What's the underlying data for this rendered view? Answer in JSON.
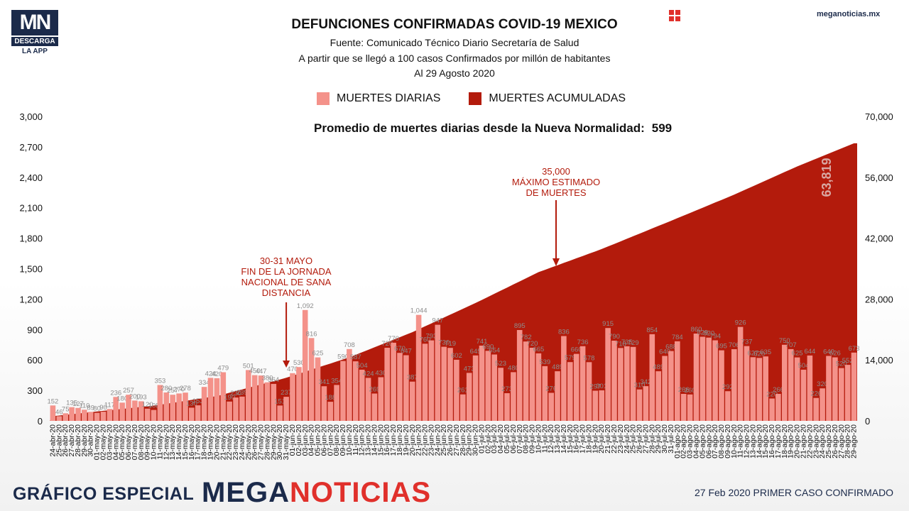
{
  "brand": {
    "logo_mn": "MN",
    "logo_descarga": "DESCARGA",
    "logo_app": "LA APP",
    "site": "meganoticias.mx"
  },
  "colors": {
    "daily": "#f4928a",
    "cumulative": "#b31b0c",
    "navy": "#1b2a4a",
    "accent": "#e0302b"
  },
  "header": {
    "title": "DEFUNCIONES CONFIRMADAS COVID-19 MEXICO",
    "source": "Fuente: Comunicado Técnico Diario Secretaría de Salud",
    "subtitle": "A partir que se llegó a 100 casos Confirmados por millón de habitantes",
    "date": "Al 29 Agosto 2020"
  },
  "legend": {
    "daily": "MUERTES DIARIAS",
    "cumulative": "MUERTES ACUMULADAS"
  },
  "average_label": "Promedio de muertes diarias desde la Nueva Normalidad:",
  "average_value": "599",
  "annotations": {
    "lockdown_end": [
      "30-31 MAYO",
      "FIN DE LA JORNADA",
      "NACIONAL DE SANA",
      "DISTANCIA"
    ],
    "estimate": [
      "35,000",
      "MÁXIMO ESTIMADO",
      "DE MUERTES"
    ],
    "final_total": "63,819"
  },
  "footer": {
    "left": "GRÁFICO ESPECIAL",
    "brand_a": "MEGA",
    "brand_b": "NOTICIAS",
    "right": "27 Feb 2020 PRIMER CASO CONFIRMADO"
  },
  "chart_data": {
    "type": "bar",
    "left_axis": {
      "ylim": [
        0,
        3000
      ],
      "ticks": [
        "0",
        "300",
        "600",
        "900",
        "1,200",
        "1,500",
        "1,800",
        "2,100",
        "2,400",
        "2,700",
        "3,000"
      ]
    },
    "right_axis": {
      "ylim": [
        0,
        70000
      ],
      "ticks": [
        "0",
        "14,000",
        "28,000",
        "42,000",
        "56,000",
        "70,000"
      ]
    },
    "categories": [
      "24-abr-20",
      "25-abr-20",
      "26-abr-20",
      "27-abr-20",
      "28-abr-20",
      "29-abr-20",
      "30-abr-20",
      "01-may-20",
      "02-may-20",
      "03-may-20",
      "04-may-20",
      "05-may-20",
      "06-may-20",
      "07-may-20",
      "08-may-20",
      "09-may-20",
      "10-may-20",
      "11-may-20",
      "12-may-20",
      "13-may-20",
      "14-may-20",
      "15-may-20",
      "16-may-20",
      "17-may-20",
      "18-may-20",
      "19-may-20",
      "20-may-20",
      "21-may-20",
      "22-may-20",
      "23-may-20",
      "24-may-20",
      "25-may-20",
      "26-may-20",
      "27-may-20",
      "28-may-20",
      "29-may-20",
      "30-may-20",
      "31-may-20",
      "01-jun-20",
      "02-jun-20",
      "03-jun-20",
      "04-jun-20",
      "05-jun-20",
      "06-jun-20",
      "07-jun-20",
      "08-jun-20",
      "09-jun-20",
      "10-jun-20",
      "11-jun-20",
      "12-jun-20",
      "13-jun-20",
      "14-jun-20",
      "15-jun-20",
      "16-jun-20",
      "17-jun-20",
      "18-jun-20",
      "19-jun-20",
      "20-jun-20",
      "21-jun-20",
      "22-jun-20",
      "23-jun-20",
      "24-jun-20",
      "25-jun-20",
      "26-jun-20",
      "27-jun-20",
      "28-jun-20",
      "29-jun-20",
      "30-jun-20",
      "01-jul-20",
      "02-jul-20",
      "03-jul-20",
      "04-jul-20",
      "05-jul-20",
      "06-jul-20",
      "07-jul-20",
      "08-jul-20",
      "09-jul-20",
      "10-jul-20",
      "11-jul-20",
      "12-jul-20",
      "13-jul-20",
      "14-jul-20",
      "15-jul-20",
      "16-jul-20",
      "17-jul-20",
      "18-jul-20",
      "19-jul-20",
      "20-jul-20",
      "21-jul-20",
      "22-jul-20",
      "23-jul-20",
      "24-jul-20",
      "25-jul-20",
      "26-jul-20",
      "27-jul-20",
      "28-jul-20",
      "29-jul-20",
      "30-jul-20",
      "31-jul-20",
      "01-ago-20",
      "02-ago-20",
      "03-ago-20",
      "04-ago-20",
      "05-ago-20",
      "06-ago-20",
      "07-ago-20",
      "08-ago-20",
      "09-ago-20",
      "10-ago-20",
      "11-ago-20",
      "12-ago-20",
      "13-ago-20",
      "14-ago-20",
      "15-ago-20",
      "16-ago-20",
      "17-ago-20",
      "18-ago-20",
      "19-ago-20",
      "20-ago-20",
      "21-ago-20",
      "22-ago-20",
      "23-ago-20",
      "24-ago-20",
      "25-ago-20",
      "26-ago-20",
      "27-ago-20",
      "28-ago-20",
      "29-ago-20"
    ],
    "series": [
      {
        "name": "MUERTES DIARIAS",
        "axis": "left",
        "values": [
          152,
          46,
          75,
          135,
          127,
          110,
          89,
          80,
          90,
          117,
          236,
          180,
          257,
          200,
          193,
          120,
          108,
          353,
          280,
          257,
          270,
          278,
          130,
          153,
          334,
          424,
          420,
          479,
          190,
          230,
          239,
          501,
          450,
          447,
          380,
          364,
          151,
          237,
          470,
          530,
          1092,
          816,
          625,
          341,
          188,
          354,
          590,
          708,
          587,
          504,
          424,
          269,
          430,
          720,
          770,
          670,
          647,
          387,
          1044,
          760,
          793,
          947,
          730,
          719,
          602,
          261,
          473,
          645,
          741,
          690,
          654,
          523,
          273,
          480,
          895,
          782,
          720,
          665,
          539,
          276,
          489,
          836,
          579,
          660,
          736,
          578,
          297,
          301,
          915,
          790,
          718,
          735,
          729,
          310,
          342,
          854,
          489,
          640,
          688,
          784,
          266,
          260,
          860,
          829,
          820,
          794,
          695,
          292,
          706,
          926,
          737,
          627,
          620,
          635,
          220,
          266,
          750,
          707,
          625,
          504,
          644,
          226,
          320,
          640,
          626,
          520,
          552,
          673
        ]
      },
      {
        "name": "MUERTES ACUMULADAS",
        "axis": "right",
        "anchors": [
          [
            "24-abr-20",
            1069
          ],
          [
            "30-abr-20",
            2000
          ],
          [
            "10-may-20",
            3500
          ],
          [
            "20-may-20",
            5700
          ],
          [
            "31-may-20",
            9900
          ],
          [
            "10-jun-20",
            14600
          ],
          [
            "20-jun-20",
            20400
          ],
          [
            "30-jun-20",
            27100
          ],
          [
            "10-jul-20",
            34200
          ],
          [
            "20-jul-20",
            39500
          ],
          [
            "31-jul-20",
            46000
          ],
          [
            "10-ago-20",
            52000
          ],
          [
            "20-ago-20",
            58500
          ],
          [
            "29-ago-20",
            63819
          ]
        ]
      }
    ]
  }
}
